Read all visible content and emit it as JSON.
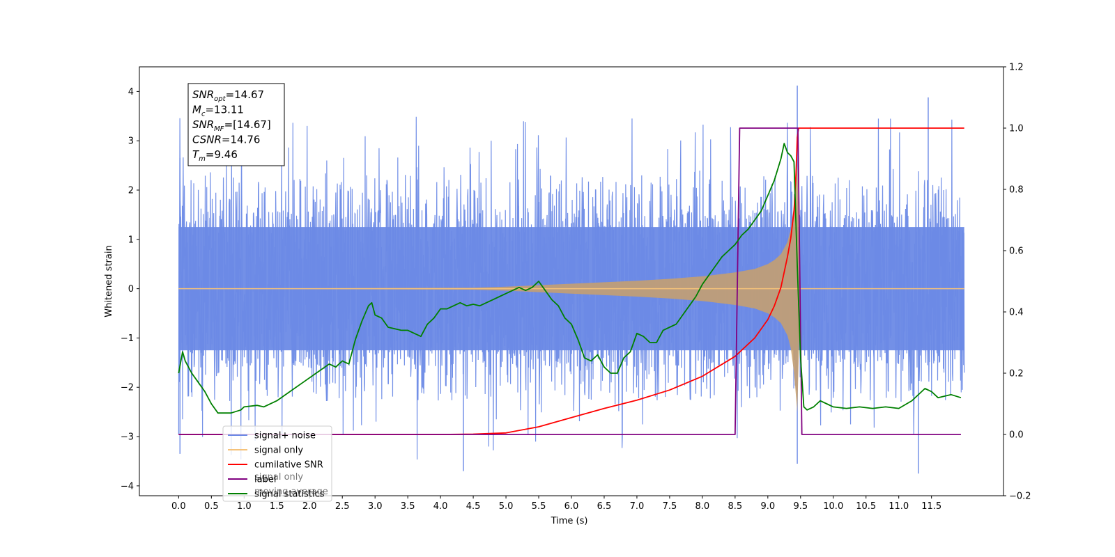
{
  "chart_data": {
    "type": "line",
    "title": "",
    "xlabel": "Time (s)",
    "ylabel": "Whitened strain",
    "y2label": "",
    "xlim": [
      -0.6,
      12.6
    ],
    "ylim": [
      -4.2,
      4.5
    ],
    "y2lim": [
      -0.2,
      1.2
    ],
    "x_ticks": [
      0.0,
      0.5,
      1.0,
      1.5,
      2.0,
      2.5,
      3.0,
      3.5,
      4.0,
      4.5,
      5.0,
      5.5,
      6.0,
      6.5,
      7.0,
      7.5,
      8.0,
      8.5,
      9.0,
      9.5,
      10.0,
      10.5,
      11.0,
      11.5
    ],
    "x_tick_labels": [
      "0.0",
      "0.5",
      "1.0",
      "1.5",
      "2.0",
      "2.5",
      "3.0",
      "3.5",
      "4.0",
      "4.5",
      "5.0",
      "5.5",
      "6.0",
      "6.5",
      "7.0",
      "7.5",
      "8.0",
      "8.5",
      "9.0",
      "9.5",
      "10.0",
      "10.5",
      "11.0",
      "11.5"
    ],
    "y_ticks": [
      -4,
      -3,
      -2,
      -1,
      0,
      1,
      2,
      3,
      4
    ],
    "y_tick_labels": [
      "−4",
      "−3",
      "−2",
      "−1",
      "0",
      "1",
      "2",
      "3",
      "4"
    ],
    "y2_ticks": [
      -0.2,
      0.0,
      0.2,
      0.4,
      0.6,
      0.8,
      1.0,
      1.2
    ],
    "y2_tick_labels": [
      "−0.2",
      "0.0",
      "0.2",
      "0.4",
      "0.6",
      "0.8",
      "1.0",
      "1.2"
    ],
    "grid": false,
    "legend_position": "lower-left",
    "series": [
      {
        "name": "signal+ noise",
        "axis": "left",
        "color": "#6b8ae6",
        "description_kind": "noise-band",
        "x_range": [
          0.0,
          12.0
        ],
        "typical_range": [
          -2.0,
          2.0
        ],
        "extreme_points": [
          [
            0.02,
            -3.35
          ],
          [
            0.02,
            2.65
          ],
          [
            4.35,
            -3.7
          ],
          [
            9.45,
            4.12
          ],
          [
            11.3,
            -3.75
          ],
          [
            11.45,
            3.88
          ],
          [
            9.45,
            -3.55
          ]
        ]
      },
      {
        "name": "signal only",
        "axis": "left",
        "color": "#f5c27a",
        "description_kind": "chirp-envelope",
        "x": [
          0.0,
          4.5,
          5.0,
          5.5,
          6.0,
          6.5,
          7.0,
          7.5,
          8.0,
          8.5,
          8.8,
          9.0,
          9.1,
          9.2,
          9.3,
          9.35,
          9.4,
          9.45,
          9.5,
          12.0
        ],
        "amplitude": [
          0.0,
          0.02,
          0.04,
          0.07,
          0.1,
          0.13,
          0.16,
          0.2,
          0.25,
          0.33,
          0.4,
          0.5,
          0.58,
          0.7,
          0.95,
          1.2,
          1.7,
          2.5,
          0.0,
          0.0
        ]
      },
      {
        "name": "cumilative SNR",
        "axis": "right",
        "color": "#ff0000",
        "x": [
          0.0,
          4.0,
          4.5,
          5.0,
          5.5,
          6.0,
          6.5,
          7.0,
          7.5,
          8.0,
          8.5,
          8.8,
          9.0,
          9.1,
          9.2,
          9.3,
          9.35,
          9.4,
          9.43,
          9.45,
          9.47,
          12.0
        ],
        "values": [
          0.0,
          0.0,
          0.001,
          0.005,
          0.025,
          0.055,
          0.085,
          0.112,
          0.145,
          0.19,
          0.255,
          0.315,
          0.375,
          0.42,
          0.48,
          0.58,
          0.64,
          0.73,
          0.85,
          0.97,
          1.0,
          1.0
        ]
      },
      {
        "name": "label",
        "axis": "right",
        "color": "#800080",
        "x": [
          0.0,
          8.5,
          8.57,
          9.46,
          9.52,
          11.95
        ],
        "values": [
          0.0,
          0.0,
          1.0,
          1.0,
          0.0,
          0.0
        ]
      },
      {
        "name": "signal statistics",
        "axis": "right",
        "color": "#008000",
        "x": [
          0.0,
          0.06,
          0.1,
          0.2,
          0.3,
          0.4,
          0.5,
          0.6,
          0.8,
          0.95,
          1.0,
          1.2,
          1.3,
          1.5,
          1.7,
          1.9,
          2.1,
          2.3,
          2.4,
          2.5,
          2.6,
          2.7,
          2.8,
          2.9,
          2.95,
          3.0,
          3.1,
          3.2,
          3.4,
          3.5,
          3.6,
          3.7,
          3.8,
          3.9,
          4.0,
          4.1,
          4.2,
          4.3,
          4.4,
          4.5,
          4.6,
          4.7,
          4.8,
          4.9,
          5.0,
          5.1,
          5.2,
          5.3,
          5.4,
          5.5,
          5.6,
          5.7,
          5.8,
          5.9,
          6.0,
          6.1,
          6.2,
          6.3,
          6.4,
          6.5,
          6.6,
          6.7,
          6.8,
          6.9,
          7.0,
          7.1,
          7.2,
          7.3,
          7.4,
          7.5,
          7.6,
          7.7,
          7.8,
          7.9,
          8.0,
          8.1,
          8.2,
          8.3,
          8.4,
          8.5,
          8.6,
          8.7,
          8.8,
          8.9,
          9.0,
          9.1,
          9.2,
          9.25,
          9.3,
          9.35,
          9.4,
          9.45,
          9.5,
          9.55,
          9.6,
          9.7,
          9.8,
          9.9,
          10.0,
          10.2,
          10.4,
          10.6,
          10.8,
          11.0,
          11.2,
          11.4,
          11.5,
          11.6,
          11.8,
          11.95
        ],
        "values": [
          0.2,
          0.27,
          0.24,
          0.2,
          0.17,
          0.14,
          0.1,
          0.07,
          0.07,
          0.08,
          0.09,
          0.095,
          0.09,
          0.11,
          0.14,
          0.17,
          0.2,
          0.23,
          0.22,
          0.24,
          0.23,
          0.31,
          0.37,
          0.42,
          0.43,
          0.39,
          0.38,
          0.35,
          0.34,
          0.34,
          0.33,
          0.32,
          0.36,
          0.38,
          0.41,
          0.41,
          0.42,
          0.43,
          0.42,
          0.425,
          0.42,
          0.43,
          0.44,
          0.45,
          0.46,
          0.47,
          0.48,
          0.47,
          0.48,
          0.5,
          0.47,
          0.44,
          0.42,
          0.38,
          0.36,
          0.31,
          0.25,
          0.24,
          0.26,
          0.22,
          0.2,
          0.2,
          0.25,
          0.27,
          0.33,
          0.32,
          0.3,
          0.3,
          0.34,
          0.35,
          0.36,
          0.39,
          0.42,
          0.45,
          0.49,
          0.52,
          0.55,
          0.58,
          0.6,
          0.62,
          0.65,
          0.67,
          0.7,
          0.73,
          0.78,
          0.83,
          0.9,
          0.95,
          0.92,
          0.91,
          0.89,
          0.55,
          0.25,
          0.09,
          0.08,
          0.09,
          0.11,
          0.1,
          0.09,
          0.085,
          0.09,
          0.085,
          0.09,
          0.085,
          0.11,
          0.15,
          0.14,
          0.12,
          0.13,
          0.12
        ]
      }
    ],
    "legend": {
      "items": [
        {
          "label": "signal+ noise",
          "color": "#6b8ae6"
        },
        {
          "label": "signal only",
          "color": "#f5c27a"
        },
        {
          "label": "cumilative SNR",
          "color": "#ff0000"
        },
        {
          "label": "label",
          "color": "#800080"
        },
        {
          "label": "signal statistics",
          "color": "#008000"
        }
      ],
      "hidden_overlap_text": [
        "signal only",
        "moving average"
      ]
    },
    "info_box": {
      "lines": [
        {
          "main": "SNR",
          "sub": "opt",
          "rest": "=14.67"
        },
        {
          "main": "M",
          "sub": "c",
          "rest": "=13.11"
        },
        {
          "main": "SNR",
          "sub": "MF",
          "rest": "=[14.67]"
        },
        {
          "main": "CSNR",
          "sub": "",
          "rest": "=14.76"
        },
        {
          "main": "T",
          "sub": "m",
          "rest": "=9.46"
        }
      ]
    }
  }
}
